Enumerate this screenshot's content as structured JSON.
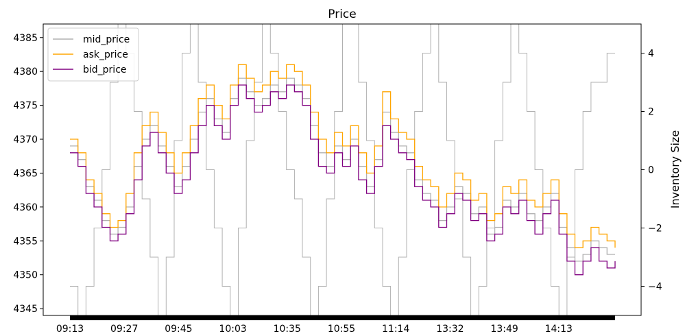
{
  "chart_data": {
    "type": "line",
    "title": "Price",
    "ylabel_right": "Inventory Size",
    "ylim_left": [
      4344,
      4387
    ],
    "ylim_right": [
      -5,
      5
    ],
    "yticks_left": [
      "4345",
      "4350",
      "4355",
      "4360",
      "4365",
      "4370",
      "4375",
      "4380",
      "4385"
    ],
    "yticks_right": [
      "−4",
      "−2",
      "0",
      "2",
      "4"
    ],
    "xticks": [
      "09:13",
      "09:27",
      "09:45",
      "10:03",
      "10:35",
      "10:55",
      "11:14",
      "13:32",
      "13:49",
      "14:13"
    ],
    "legend_position": "upper-left",
    "grid": false,
    "series": [
      {
        "name": "mid_price",
        "color": "#b0b0b0",
        "axis": "left",
        "values": [
          4369,
          4367,
          4363,
          4361,
          4358,
          4356,
          4357,
          4360,
          4366,
          4370,
          4372,
          4369,
          4366,
          4363,
          4366,
          4370,
          4374,
          4376,
          4373,
          4371,
          4376,
          4379,
          4377,
          4375,
          4376,
          4378,
          4377,
          4379,
          4378,
          4376,
          4372,
          4368,
          4366,
          4369,
          4367,
          4370,
          4366,
          4363,
          4367,
          4374,
          4371,
          4369,
          4368,
          4364,
          4362,
          4361,
          4358,
          4360,
          4363,
          4362,
          4359,
          4360,
          4356,
          4357,
          4361,
          4360,
          4362,
          4359,
          4358,
          4360,
          4362,
          4357,
          4354,
          4352,
          4353,
          4355,
          4354,
          4353,
          4353
        ]
      },
      {
        "name": "ask_price",
        "color": "#ffa500",
        "axis": "left",
        "values": [
          4370,
          4368,
          4364,
          4362,
          4359,
          4357,
          4358,
          4362,
          4368,
          4372,
          4374,
          4371,
          4368,
          4365,
          4368,
          4372,
          4376,
          4378,
          4375,
          4373,
          4378,
          4381,
          4379,
          4377,
          4378,
          4380,
          4379,
          4381,
          4380,
          4378,
          4374,
          4370,
          4368,
          4371,
          4369,
          4372,
          4368,
          4365,
          4369,
          4377,
          4373,
          4371,
          4370,
          4366,
          4364,
          4363,
          4360,
          4362,
          4365,
          4364,
          4361,
          4362,
          4358,
          4359,
          4363,
          4362,
          4364,
          4361,
          4360,
          4362,
          4364,
          4359,
          4356,
          4354,
          4355,
          4357,
          4356,
          4355,
          4354
        ]
      },
      {
        "name": "bid_price",
        "color": "#800080",
        "axis": "left",
        "values": [
          4368,
          4366,
          4362,
          4360,
          4357,
          4355,
          4356,
          4359,
          4364,
          4369,
          4371,
          4368,
          4365,
          4362,
          4364,
          4368,
          4372,
          4375,
          4372,
          4370,
          4375,
          4378,
          4376,
          4374,
          4375,
          4377,
          4376,
          4378,
          4377,
          4375,
          4370,
          4366,
          4365,
          4368,
          4366,
          4369,
          4364,
          4362,
          4366,
          4372,
          4370,
          4368,
          4367,
          4363,
          4361,
          4360,
          4357,
          4359,
          4362,
          4361,
          4358,
          4359,
          4355,
          4356,
          4360,
          4359,
          4361,
          4358,
          4356,
          4359,
          4361,
          4356,
          4352,
          4350,
          4352,
          4354,
          4352,
          4351,
          4352
        ]
      },
      {
        "name": "",
        "color": "#b0b0b0",
        "axis": "right",
        "values": [
          -4,
          -5,
          -4,
          -2,
          0,
          3,
          5,
          4,
          2,
          -1,
          -3,
          -5,
          -3,
          1,
          4,
          5,
          3,
          0,
          -2,
          -4,
          -5,
          -2,
          1,
          3,
          5,
          4,
          2,
          0,
          -1,
          -3,
          -5,
          -4,
          -1,
          2,
          5,
          5,
          3,
          1,
          -2,
          -4,
          -5,
          -3,
          0,
          2,
          4,
          5,
          3,
          1,
          -1,
          -3,
          -5,
          -4,
          -2,
          1,
          3,
          5,
          4,
          2,
          0,
          -2,
          -4,
          -5,
          -3,
          0,
          2,
          3,
          3,
          4,
          4
        ]
      }
    ]
  }
}
